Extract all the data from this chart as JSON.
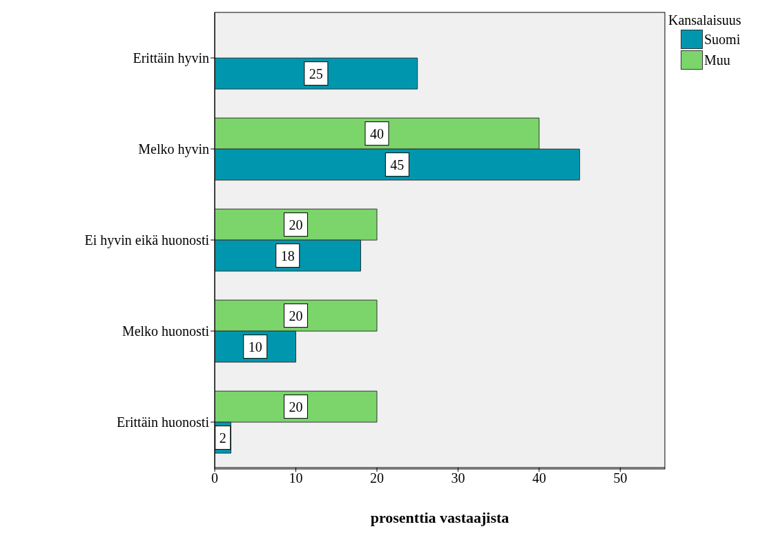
{
  "chart_data": {
    "type": "bar",
    "orientation": "horizontal",
    "categories": [
      "Erittäin hyvin",
      "Melko hyvin",
      "Ei hyvin eikä huonosti",
      "Melko huonosti",
      "Erittäin huonosti"
    ],
    "series": [
      {
        "name": "Suomi",
        "color": "#0097ae",
        "values": [
          25,
          45,
          18,
          10,
          2
        ],
        "value_labels": [
          "25",
          "45",
          "18",
          "10",
          "2"
        ]
      },
      {
        "name": "Muu",
        "color": "#7bd56b",
        "values": [
          0,
          40,
          20,
          20,
          20
        ],
        "value_labels": [
          null,
          "40",
          "20",
          "20",
          "20"
        ]
      }
    ],
    "xlim": [
      0,
      55.5
    ],
    "xticks": [
      0,
      10,
      20,
      30,
      40,
      50
    ],
    "xlabel": "prosenttia vastaajista",
    "legend_title": "Kansalaisuus",
    "legend": "top right",
    "grid": false
  }
}
